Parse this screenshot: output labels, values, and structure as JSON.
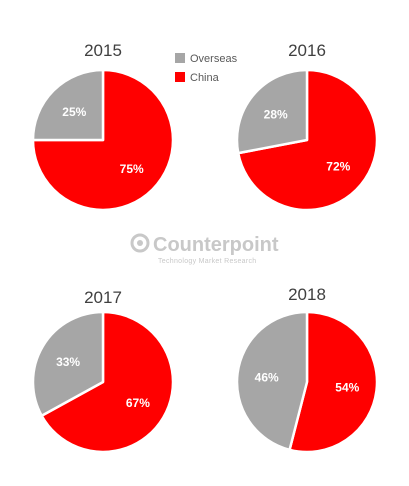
{
  "chart_data": [
    {
      "type": "pie",
      "title": "2015",
      "categories": [
        "Overseas",
        "China"
      ],
      "values": [
        25,
        75
      ],
      "data_labels": [
        "25%",
        "75%"
      ],
      "colors": [
        "#a6a6a6",
        "#ff0000"
      ]
    },
    {
      "type": "pie",
      "title": "2016",
      "categories": [
        "Overseas",
        "China"
      ],
      "values": [
        28,
        72
      ],
      "data_labels": [
        "28%",
        "72%"
      ],
      "colors": [
        "#a6a6a6",
        "#ff0000"
      ]
    },
    {
      "type": "pie",
      "title": "2017",
      "categories": [
        "Overseas",
        "China"
      ],
      "values": [
        33,
        67
      ],
      "data_labels": [
        "33%",
        "67%"
      ],
      "colors": [
        "#a6a6a6",
        "#ff0000"
      ]
    },
    {
      "type": "pie",
      "title": "2018",
      "categories": [
        "Overseas",
        "China"
      ],
      "values": [
        46,
        54
      ],
      "data_labels": [
        "46%",
        "54%"
      ],
      "colors": [
        "#a6a6a6",
        "#ff0000"
      ]
    }
  ],
  "legend": {
    "placement": "top-center",
    "items": [
      {
        "label": "Overseas",
        "color": "#a6a6a6"
      },
      {
        "label": "China",
        "color": "#ff0000"
      }
    ]
  },
  "watermark": {
    "brand": "Counterpoint",
    "tagline": "Technology Market Research",
    "color": "#c8c8c8"
  }
}
